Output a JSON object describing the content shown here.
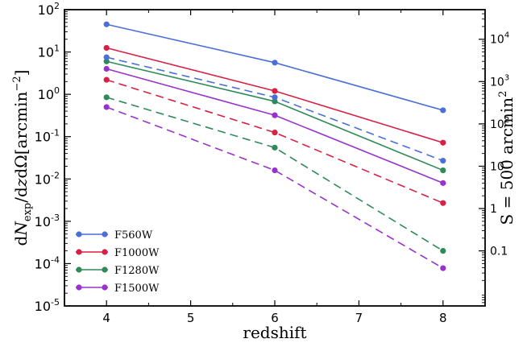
{
  "chart_data": {
    "type": "line",
    "xlabel": "redshift",
    "ylabel": "dN_exp/dzdΩ[arcmin^−2]",
    "ylabel_right": "S = 500 arcmin^2",
    "x": [
      4,
      6,
      8
    ],
    "xlim": [
      3.5,
      8.5
    ],
    "ylim": [
      1e-05,
      100
    ],
    "yscale": "log",
    "x_ticks": [
      "4",
      "5",
      "6",
      "7",
      "8"
    ],
    "y_ticks": [
      {
        "base": "10",
        "exp": "-5"
      },
      {
        "base": "10",
        "exp": "-4"
      },
      {
        "base": "10",
        "exp": "-3"
      },
      {
        "base": "10",
        "exp": "-2"
      },
      {
        "base": "10",
        "exp": "-1"
      },
      {
        "base": "10",
        "exp": "0"
      },
      {
        "base": "10",
        "exp": "1"
      },
      {
        "base": "10",
        "exp": "2"
      }
    ],
    "right_ticks": [
      {
        "value": 0.1,
        "label": "0.1",
        "exp": ""
      },
      {
        "value": 1,
        "label": "1",
        "exp": ""
      },
      {
        "value": 10,
        "label": "10",
        "exp": ""
      },
      {
        "value": 100,
        "label": "10",
        "exp": "2"
      },
      {
        "value": 1000,
        "label": "10",
        "exp": "3"
      },
      {
        "value": 10000,
        "label": "10",
        "exp": "4"
      }
    ],
    "legend_position": "lower-left",
    "series": [
      {
        "name": "F560W",
        "color": "#4a6fd8",
        "style": "solid",
        "values": [
          45,
          5.6,
          0.42
        ]
      },
      {
        "name": "F1000W",
        "color": "#d81f44",
        "style": "solid",
        "values": [
          12.5,
          1.2,
          0.072
        ]
      },
      {
        "name": "F1280W",
        "color": "#2e8b57",
        "style": "solid",
        "values": [
          6.0,
          0.68,
          0.016
        ]
      },
      {
        "name": "F1500W",
        "color": "#9932cc",
        "style": "solid",
        "values": [
          4.0,
          0.32,
          0.008
        ]
      },
      {
        "name": "",
        "color": "#4a6fd8",
        "style": "dashed",
        "values": [
          7.5,
          0.85,
          0.027
        ]
      },
      {
        "name": "",
        "color": "#d81f44",
        "style": "dashed",
        "values": [
          2.2,
          0.125,
          0.0027
        ]
      },
      {
        "name": "",
        "color": "#2e8b57",
        "style": "dashed",
        "values": [
          0.85,
          0.055,
          0.0002
        ]
      },
      {
        "name": "",
        "color": "#9932cc",
        "style": "dashed",
        "values": [
          0.5,
          0.016,
          7.8e-05
        ]
      }
    ]
  }
}
